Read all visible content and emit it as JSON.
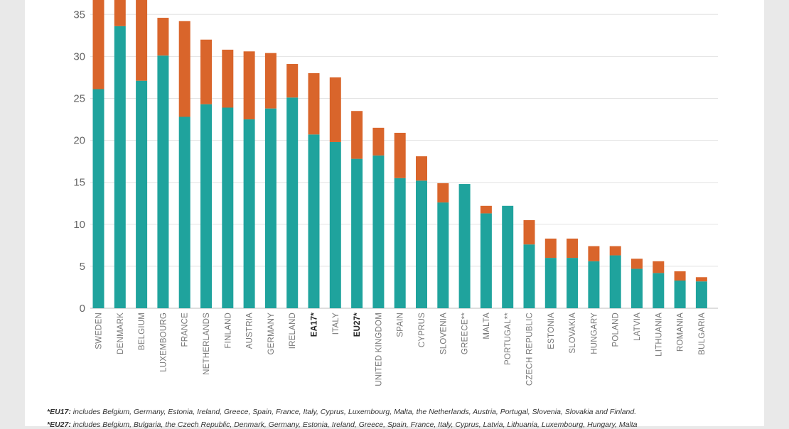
{
  "chart_data": {
    "type": "bar",
    "stacked": true,
    "categories": [
      "SWEDEN",
      "DENMARK",
      "BELGIUM",
      "LUXEMBOURG",
      "FRANCE",
      "NETHERLANDS",
      "FINLAND",
      "AUSTRIA",
      "GERMANY",
      "IRELAND",
      "EA17*",
      "ITALY",
      "EU27*",
      "UNITED KINGDOM",
      "SPAIN",
      "CYPRUS",
      "SLOVENIA",
      "GREECE**",
      "MALTA",
      "PORTUGAL**",
      "CZECH REPUBLIC",
      "ESTONIA",
      "SLOVAKIA",
      "HUNGARY",
      "POLAND",
      "LATVIA",
      "LITHUANIA",
      "ROMANIA",
      "BULGARIA"
    ],
    "bold_categories": [
      "EA17*",
      "EU27*"
    ],
    "series": [
      {
        "color": "#1fa39d",
        "values": [
          26.1,
          33.6,
          27.1,
          30.1,
          22.8,
          24.3,
          23.9,
          22.5,
          23.8,
          25.1,
          20.7,
          19.8,
          17.8,
          18.2,
          15.5,
          15.2,
          12.6,
          14.8,
          11.3,
          12.2,
          7.6,
          6.0,
          6.0,
          5.6,
          6.3,
          4.7,
          4.2,
          3.3,
          3.2
        ]
      },
      {
        "color": "#d9652b",
        "values": [
          11.5,
          4.5,
          10.0,
          4.5,
          11.4,
          7.7,
          6.9,
          8.1,
          6.6,
          4.0,
          7.3,
          7.7,
          5.7,
          3.3,
          5.4,
          2.9,
          2.3,
          0.0,
          0.9,
          0.0,
          2.9,
          2.3,
          2.3,
          1.8,
          1.1,
          1.2,
          1.4,
          1.1,
          0.5
        ]
      }
    ],
    "ylim": [
      0,
      37
    ],
    "yticks": [
      0,
      5,
      10,
      15,
      20,
      25,
      30,
      35
    ],
    "grid": true
  },
  "footnotes": [
    {
      "key": "*EU17:",
      "text": " includes Belgium, Germany, Estonia, Ireland, Greece, Spain, France, Italy, Cyprus, Luxembourg, Malta, the Netherlands, Austria, Portugal, Slovenia, Slovakia and Finland."
    },
    {
      "key": "*EU27:",
      "text": " includes Belgium, Bulgaria, the Czech Republic, Denmark, Germany, Estonia, Ireland, Greece, Spain, France, Italy, Cyprus, Latvia, Lithuania, Luxembourg, Hungary, Malta"
    }
  ]
}
